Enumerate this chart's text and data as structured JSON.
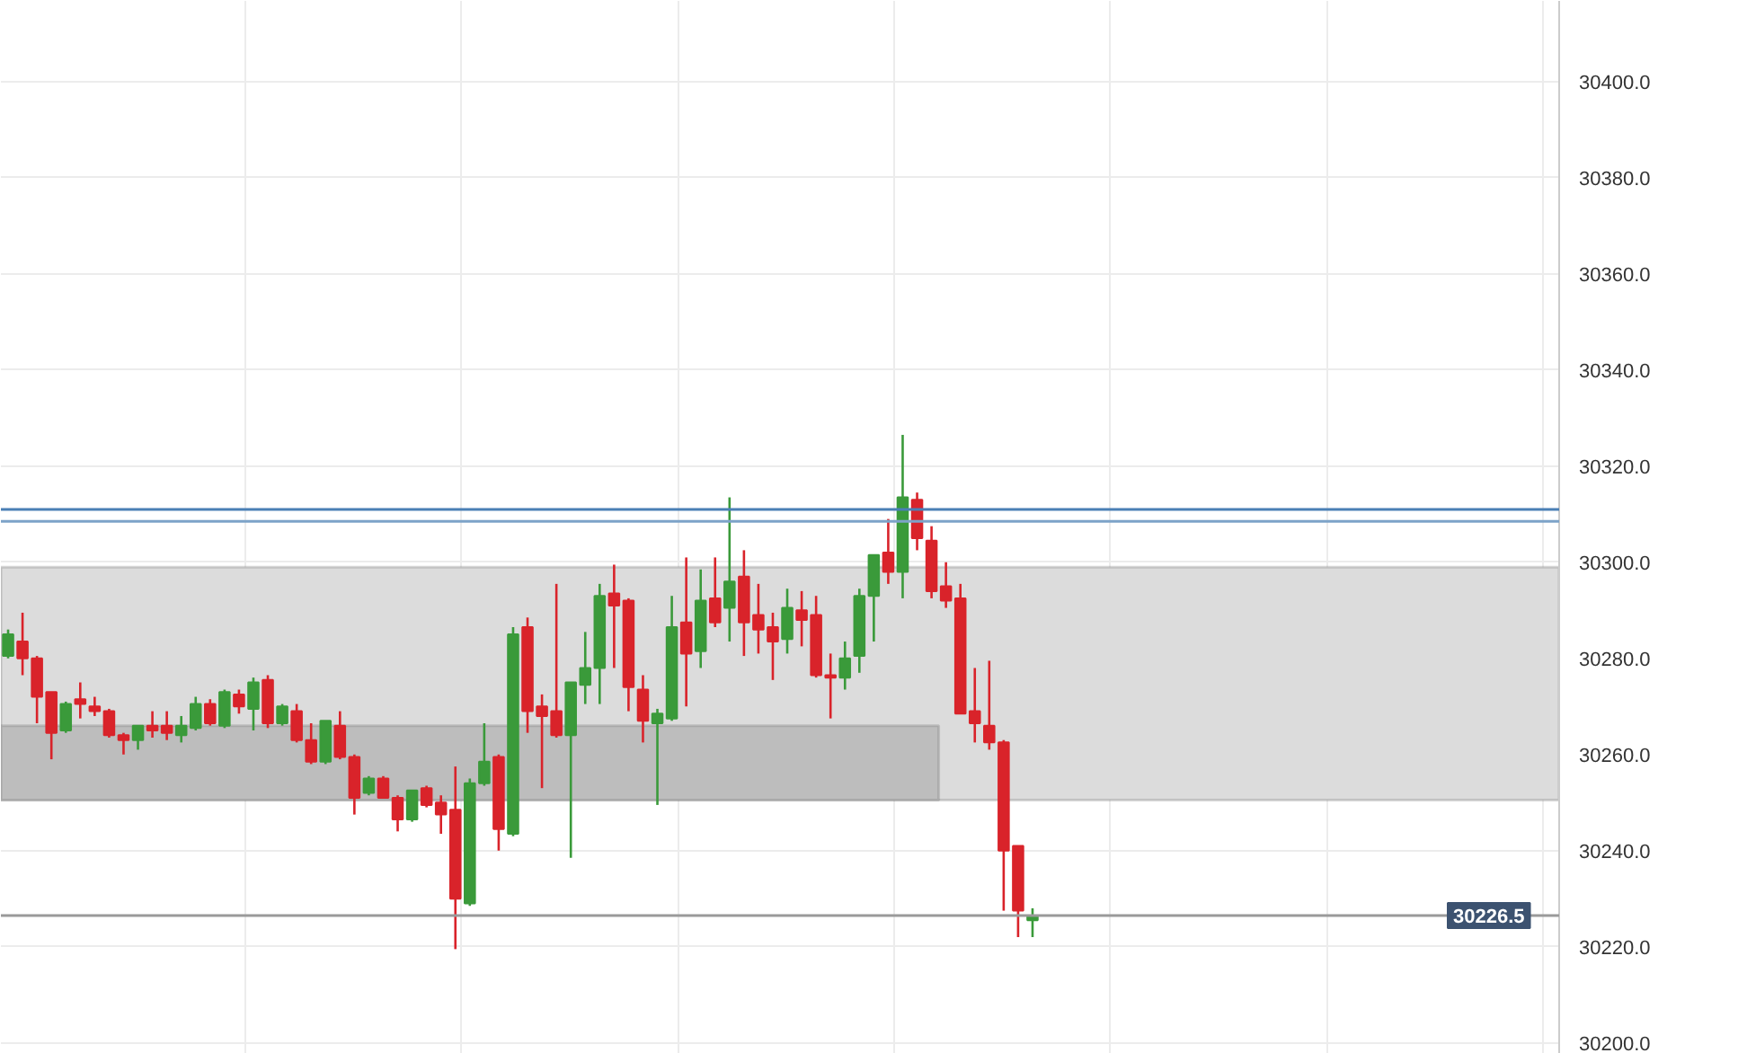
{
  "chart_data": {
    "type": "candlestick",
    "categories": [
      null,
      null,
      null,
      null,
      null,
      null,
      null,
      null,
      null,
      null,
      null,
      null,
      null,
      null,
      null,
      null,
      null,
      null,
      null,
      null,
      null,
      null,
      null,
      null,
      null,
      null,
      null,
      null,
      null,
      null,
      null,
      null,
      null,
      null,
      null,
      null,
      null,
      null,
      null,
      null,
      null,
      null,
      null,
      null,
      null,
      null,
      null,
      null,
      null,
      null,
      null,
      null,
      null,
      null,
      null,
      null,
      null,
      null,
      null,
      null,
      null,
      null,
      null,
      null,
      null,
      null,
      null,
      null,
      null,
      null,
      null,
      null,
      null,
      null,
      null,
      null,
      null,
      null,
      null,
      null,
      null,
      null,
      null,
      null,
      null,
      null,
      null,
      null,
      null,
      null,
      null,
      null,
      null,
      null,
      null,
      null,
      null,
      null,
      null,
      null,
      null,
      null,
      null,
      null,
      null,
      null,
      null,
      null
    ],
    "ohlc": [
      [
        30280.5,
        30286,
        30280,
        30285
      ],
      [
        30283.5,
        30289.5,
        30276.5,
        30280
      ],
      [
        30280,
        30280.5,
        30266.5,
        30272
      ],
      [
        30273,
        30273,
        30259,
        30264.5
      ],
      [
        30265,
        30271,
        30264.5,
        30270.5
      ],
      [
        30271.5,
        30275,
        30267.5,
        30270.5
      ],
      [
        30270,
        30272,
        30268,
        30269
      ],
      [
        30269,
        30269.5,
        30263.5,
        30264
      ],
      [
        30264,
        30264.5,
        30260,
        30263
      ],
      [
        30263,
        30266,
        30261,
        30266
      ],
      [
        30266,
        30269,
        30263.5,
        30265
      ],
      [
        30266,
        30269,
        30263,
        30264.5
      ],
      [
        30264,
        30268,
        30262.5,
        30266
      ],
      [
        30265.5,
        30272,
        30265,
        30270.5
      ],
      [
        30270.5,
        30271.5,
        30266,
        30266.5
      ],
      [
        30266,
        30273.5,
        30265.5,
        30273
      ],
      [
        30272.5,
        30273.5,
        30268.5,
        30270
      ],
      [
        30269.5,
        30276,
        30265,
        30275
      ],
      [
        30275.5,
        30276.5,
        30265.5,
        30266.5
      ],
      [
        30266.5,
        30270.5,
        30266,
        30270
      ],
      [
        30269,
        30270.5,
        30262.5,
        30263
      ],
      [
        30263,
        30266.5,
        30258,
        30258.5
      ],
      [
        30258.5,
        30267,
        30258,
        30267
      ],
      [
        30266,
        30269,
        30259,
        30259.5
      ],
      [
        30259.5,
        30260,
        30247.5,
        30251
      ],
      [
        30252,
        30255.5,
        30251.5,
        30255
      ],
      [
        30255,
        30255.5,
        30251,
        30251
      ],
      [
        30251,
        30251.5,
        30244,
        30246.5
      ],
      [
        30246.5,
        30252.5,
        30246,
        30252.5
      ],
      [
        30253,
        30253.5,
        30249,
        30249.5
      ],
      [
        30250,
        30251.5,
        30243.5,
        30247.5
      ],
      [
        30248.5,
        30257.5,
        30219.5,
        30230
      ],
      [
        30229,
        30255,
        30228.5,
        30254
      ],
      [
        30254,
        30266.5,
        30253.5,
        30258.5
      ],
      [
        30259.5,
        30260,
        30240,
        30244.5
      ],
      [
        30243.5,
        30286.5,
        30243,
        30285
      ],
      [
        30286.5,
        30288.5,
        30264.5,
        30269
      ],
      [
        30270,
        30272.5,
        30253,
        30268
      ],
      [
        30269,
        30295.5,
        30263.5,
        30264
      ],
      [
        30264,
        30275,
        30238.5,
        30275
      ],
      [
        30274.5,
        30285.5,
        30270.5,
        30278
      ],
      [
        30278,
        30295.5,
        30270.5,
        30293
      ],
      [
        30293.5,
        30299.5,
        30278,
        30291
      ],
      [
        30292,
        30292.5,
        30269,
        30274
      ],
      [
        30273.5,
        30276.5,
        30262.5,
        30267
      ],
      [
        30266.5,
        30269.5,
        30249.5,
        30268.5
      ],
      [
        30267.5,
        30293,
        30267,
        30286.5
      ],
      [
        30287.5,
        30301,
        30270,
        30281
      ],
      [
        30281.5,
        30298.5,
        30278,
        30292
      ],
      [
        30292.5,
        30301,
        30286.5,
        30287.5
      ],
      [
        30290.5,
        30313.5,
        30283.5,
        30296
      ],
      [
        30297,
        30302.5,
        30280.5,
        30287.5
      ],
      [
        30289,
        30295.5,
        30281,
        30286
      ],
      [
        30286.5,
        30289.5,
        30275.5,
        30283.5
      ],
      [
        30284,
        30294.5,
        30281,
        30290.5
      ],
      [
        30290,
        30294,
        30282.5,
        30288
      ],
      [
        30289,
        30293,
        30276,
        30276.5
      ],
      [
        30276.5,
        30281,
        30267.5,
        30276
      ],
      [
        30276,
        30283.5,
        30273.5,
        30280
      ],
      [
        30280.5,
        30294.5,
        30277,
        30293
      ],
      [
        30293,
        30301.5,
        30283.5,
        30301.5
      ],
      [
        30302,
        30309,
        30295.5,
        30298
      ],
      [
        30298,
        30326.5,
        30292.5,
        30313.5
      ],
      [
        30313,
        30314.5,
        30302.5,
        30305
      ],
      [
        30304.5,
        30307.5,
        30292.5,
        30294
      ],
      [
        30295,
        30300,
        30290.5,
        30292
      ],
      [
        30292.5,
        30295.5,
        30268.5,
        30268.5
      ],
      [
        30269,
        30278,
        30262.5,
        30266.5
      ],
      [
        30266,
        30279.5,
        30261,
        30262.5
      ],
      [
        30262.5,
        30263,
        30227.5,
        30240
      ],
      [
        30241,
        30241,
        30222,
        30227.5
      ],
      [
        30225.5,
        30228,
        30222,
        30226.5
      ],
      null,
      null,
      null,
      null,
      null,
      null,
      null,
      null,
      null,
      null,
      null,
      null,
      null,
      null,
      null,
      null,
      null,
      null,
      null,
      null,
      null,
      null,
      null,
      null,
      null,
      null,
      null,
      null,
      null,
      null,
      null,
      null,
      null,
      null,
      null,
      null
    ],
    "colors": [
      "#3a9a3a",
      "#d9232a",
      "#d9232a",
      "#d9232a",
      "#3a9a3a",
      "#d9232a",
      "#d9232a",
      "#d9232a",
      "#d9232a",
      "#3a9a3a",
      "#d9232a",
      "#d9232a",
      "#3a9a3a",
      "#3a9a3a",
      "#d9232a",
      "#3a9a3a",
      "#d9232a",
      "#3a9a3a",
      "#d9232a",
      "#3a9a3a",
      "#d9232a",
      "#d9232a",
      "#3a9a3a",
      "#d9232a",
      "#d9232a",
      "#3a9a3a",
      "#d9232a",
      "#d9232a",
      "#3a9a3a",
      "#d9232a",
      "#d9232a",
      "#d9232a",
      "#3a9a3a",
      "#3a9a3a",
      "#d9232a",
      "#3a9a3a",
      "#d9232a",
      "#d9232a",
      "#d9232a",
      "#3a9a3a",
      "#3a9a3a",
      "#3a9a3a",
      "#d9232a",
      "#d9232a",
      "#d9232a",
      "#3a9a3a",
      "#3a9a3a",
      "#d9232a",
      "#3a9a3a",
      "#d9232a",
      "#3a9a3a",
      "#d9232a",
      "#d9232a",
      "#d9232a",
      "#3a9a3a",
      "#d9232a",
      "#d9232a",
      "#d9232a",
      "#3a9a3a",
      "#3a9a3a",
      "#3a9a3a",
      "#d9232a",
      "#3a9a3a",
      "#d9232a",
      "#d9232a",
      "#d9232a",
      "#d9232a",
      "#d9232a",
      "#d9232a",
      "#d9232a",
      "#d9232a",
      "#3a9a3a",
      null,
      null,
      null,
      null,
      null,
      null,
      null,
      null,
      null,
      null,
      null,
      null,
      null,
      null,
      null,
      null,
      null,
      null,
      null,
      null,
      null,
      null,
      null,
      null,
      null,
      null,
      null,
      null,
      null,
      null,
      null,
      null,
      null,
      null,
      null,
      null
    ],
    "ylim": [
      30197.7,
      30416.8
    ],
    "yticks": [
      {
        "value": 30200,
        "label": "30200.0"
      },
      {
        "value": 30220,
        "label": "30220.0"
      },
      {
        "value": 30240,
        "label": "30240.0"
      },
      {
        "value": 30260,
        "label": "30260.0"
      },
      {
        "value": 30280,
        "label": "30280.0"
      },
      {
        "value": 30300,
        "label": "30300.0"
      },
      {
        "value": 30320,
        "label": "30320.0"
      },
      {
        "value": 30340,
        "label": "30340.0"
      },
      {
        "value": 30360,
        "label": "30360.0"
      },
      {
        "value": 30380,
        "label": "30380.0"
      },
      {
        "value": 30400,
        "label": "30400.0"
      }
    ],
    "bands": [
      {
        "axis": "y",
        "from": 30250.5,
        "to": 30299,
        "color": "#dcdcdc"
      },
      {
        "axis": "y",
        "from": 30250.5,
        "to": 30266,
        "color": "#bdbdbd"
      }
    ],
    "ref_lines": [
      {
        "axis": "y",
        "value": 30311,
        "color": "#4a7fb5",
        "line_style": "solid"
      },
      {
        "axis": "y",
        "value": 30308.5,
        "color": "#7da3c8",
        "line_style": "solid"
      },
      {
        "axis": "y",
        "value": 30226.5,
        "label": "30226.5",
        "color": "#9a9a9a",
        "line_style": "solid"
      }
    ],
    "grid": true,
    "tick_labels": "y"
  }
}
